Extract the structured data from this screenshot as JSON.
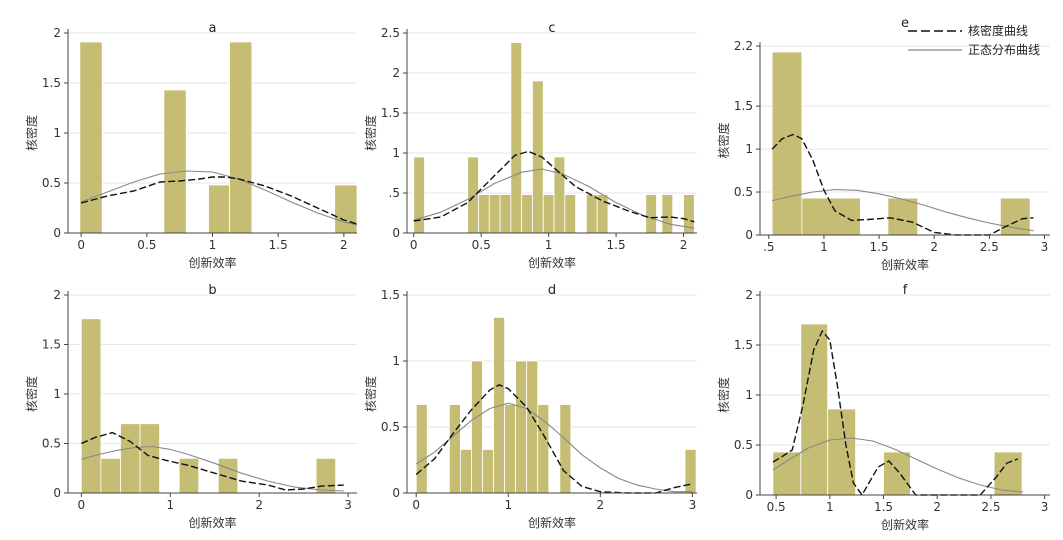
{
  "legend": {
    "kde_label": "核密度曲线",
    "normal_label": "正态分布曲线"
  },
  "colors": {
    "bar_fill": "#c5bd74",
    "bar_edge": "#ffffff",
    "kde_line": "#111111",
    "normal_line": "#888888",
    "axis": "#444444",
    "grid": "#e6e6e6"
  },
  "chart_data": [
    {
      "type": "histogram",
      "panel": "a",
      "title": "a",
      "xlabel": "创新效率",
      "ylabel": "核密度",
      "xlim": [
        -0.1,
        2.1
      ],
      "ylim": [
        0,
        2
      ],
      "xticks": [
        0,
        0.5,
        1,
        1.5,
        2
      ],
      "xtick_labels": [
        "0",
        "0.5",
        "1",
        "1.5",
        "2"
      ],
      "yticks": [
        0,
        0.5,
        1,
        1.5,
        2
      ],
      "ytick_labels": [
        "0",
        "0.5",
        "1",
        "1.5",
        "2"
      ],
      "bars": [
        {
          "x0": -0.01,
          "x1": 0.16,
          "h": 1.91
        },
        {
          "x0": 0.63,
          "x1": 0.8,
          "h": 1.43
        },
        {
          "x0": 0.97,
          "x1": 1.13,
          "h": 0.48
        },
        {
          "x0": 1.13,
          "x1": 1.3,
          "h": 1.91
        },
        {
          "x0": 1.93,
          "x1": 2.1,
          "h": 0.48
        }
      ],
      "kde": [
        [
          0,
          0.3
        ],
        [
          0.2,
          0.37
        ],
        [
          0.4,
          0.42
        ],
        [
          0.6,
          0.51
        ],
        [
          0.75,
          0.52
        ],
        [
          0.9,
          0.54
        ],
        [
          1.0,
          0.56
        ],
        [
          1.1,
          0.56
        ],
        [
          1.2,
          0.54
        ],
        [
          1.4,
          0.47
        ],
        [
          1.6,
          0.37
        ],
        [
          1.8,
          0.25
        ],
        [
          2.0,
          0.13
        ],
        [
          2.1,
          0.09
        ]
      ],
      "normal": [
        [
          0,
          0.31
        ],
        [
          0.2,
          0.41
        ],
        [
          0.4,
          0.51
        ],
        [
          0.6,
          0.59
        ],
        [
          0.8,
          0.62
        ],
        [
          1.0,
          0.61
        ],
        [
          1.2,
          0.54
        ],
        [
          1.4,
          0.43
        ],
        [
          1.6,
          0.31
        ],
        [
          1.8,
          0.2
        ],
        [
          2.0,
          0.11
        ],
        [
          2.1,
          0.08
        ]
      ]
    },
    {
      "type": "histogram",
      "panel": "c",
      "title": "c",
      "xlabel": "创新效率",
      "ylabel": "核密度",
      "xlim": [
        -0.05,
        2.1
      ],
      "ylim": [
        0,
        2.5
      ],
      "xticks": [
        0,
        0.5,
        1,
        1.5,
        2
      ],
      "xtick_labels": [
        "0",
        "0.5",
        "1",
        "1.5",
        "2"
      ],
      "yticks": [
        0,
        0.5,
        1,
        1.5,
        2,
        2.5
      ],
      "ytick_labels": [
        "0",
        ".5",
        "1",
        "1.5",
        "2",
        "2.5"
      ],
      "bars": [
        {
          "x0": 0.0,
          "x1": 0.08,
          "h": 0.95
        },
        {
          "x0": 0.4,
          "x1": 0.48,
          "h": 0.95
        },
        {
          "x0": 0.48,
          "x1": 0.56,
          "h": 0.48
        },
        {
          "x0": 0.56,
          "x1": 0.64,
          "h": 0.48
        },
        {
          "x0": 0.64,
          "x1": 0.72,
          "h": 0.48
        },
        {
          "x0": 0.72,
          "x1": 0.8,
          "h": 2.38
        },
        {
          "x0": 0.8,
          "x1": 0.88,
          "h": 0.48
        },
        {
          "x0": 0.88,
          "x1": 0.96,
          "h": 1.9
        },
        {
          "x0": 0.96,
          "x1": 1.04,
          "h": 0.48
        },
        {
          "x0": 1.04,
          "x1": 1.12,
          "h": 0.95
        },
        {
          "x0": 1.12,
          "x1": 1.2,
          "h": 0.48
        },
        {
          "x0": 1.28,
          "x1": 1.36,
          "h": 0.48
        },
        {
          "x0": 1.36,
          "x1": 1.44,
          "h": 0.48
        },
        {
          "x0": 1.72,
          "x1": 1.8,
          "h": 0.48
        },
        {
          "x0": 1.84,
          "x1": 1.92,
          "h": 0.48
        },
        {
          "x0": 2.0,
          "x1": 2.08,
          "h": 0.48
        }
      ],
      "kde": [
        [
          0,
          0.15
        ],
        [
          0.2,
          0.2
        ],
        [
          0.4,
          0.38
        ],
        [
          0.6,
          0.72
        ],
        [
          0.75,
          0.97
        ],
        [
          0.85,
          1.02
        ],
        [
          0.95,
          0.95
        ],
        [
          1.05,
          0.8
        ],
        [
          1.2,
          0.58
        ],
        [
          1.4,
          0.4
        ],
        [
          1.6,
          0.27
        ],
        [
          1.75,
          0.19
        ],
        [
          1.9,
          0.2
        ],
        [
          2.0,
          0.18
        ],
        [
          2.08,
          0.14
        ]
      ],
      "normal": [
        [
          0,
          0.16
        ],
        [
          0.2,
          0.26
        ],
        [
          0.4,
          0.42
        ],
        [
          0.6,
          0.62
        ],
        [
          0.8,
          0.76
        ],
        [
          0.95,
          0.8
        ],
        [
          1.1,
          0.74
        ],
        [
          1.3,
          0.58
        ],
        [
          1.5,
          0.38
        ],
        [
          1.7,
          0.22
        ],
        [
          1.9,
          0.11
        ],
        [
          2.08,
          0.06
        ]
      ]
    },
    {
      "type": "histogram",
      "panel": "e",
      "title": "e",
      "xlabel": "创新效率",
      "ylabel": "核密度",
      "xlim": [
        0.42,
        3.05
      ],
      "ylim": [
        0,
        2.2
      ],
      "xticks": [
        0.5,
        1,
        1.5,
        2,
        2.5,
        3
      ],
      "xtick_labels": [
        ".5",
        "1",
        "1.5",
        "2",
        "2.5",
        "3"
      ],
      "yticks": [
        0,
        0.5,
        1,
        1.5,
        2.2
      ],
      "ytick_labels": [
        "0",
        "0.5",
        "1",
        "1.5",
        "2.2"
      ],
      "bars": [
        {
          "x0": 0.53,
          "x1": 0.8,
          "h": 2.13
        },
        {
          "x0": 0.8,
          "x1": 1.33,
          "h": 0.43
        },
        {
          "x0": 1.58,
          "x1": 1.85,
          "h": 0.43
        },
        {
          "x0": 2.6,
          "x1": 2.87,
          "h": 0.43
        }
      ],
      "kde": [
        [
          0.53,
          1.0
        ],
        [
          0.62,
          1.12
        ],
        [
          0.72,
          1.17
        ],
        [
          0.8,
          1.12
        ],
        [
          0.9,
          0.87
        ],
        [
          1.0,
          0.52
        ],
        [
          1.1,
          0.28
        ],
        [
          1.25,
          0.17
        ],
        [
          1.4,
          0.18
        ],
        [
          1.6,
          0.2
        ],
        [
          1.8,
          0.15
        ],
        [
          2.0,
          0.03
        ],
        [
          2.2,
          0.0
        ],
        [
          2.5,
          0.0
        ],
        [
          2.65,
          0.1
        ],
        [
          2.8,
          0.19
        ],
        [
          2.9,
          0.2
        ]
      ],
      "normal": [
        [
          0.53,
          0.4
        ],
        [
          0.7,
          0.45
        ],
        [
          0.9,
          0.5
        ],
        [
          1.1,
          0.53
        ],
        [
          1.3,
          0.52
        ],
        [
          1.5,
          0.48
        ],
        [
          1.7,
          0.42
        ],
        [
          1.9,
          0.35
        ],
        [
          2.1,
          0.27
        ],
        [
          2.3,
          0.2
        ],
        [
          2.5,
          0.14
        ],
        [
          2.7,
          0.09
        ],
        [
          2.9,
          0.05
        ]
      ]
    },
    {
      "type": "histogram",
      "panel": "b",
      "title": "b",
      "xlabel": "创新效率",
      "ylabel": "核密度",
      "xlim": [
        -0.15,
        3.1
      ],
      "ylim": [
        0,
        2
      ],
      "xticks": [
        0,
        1,
        2,
        3
      ],
      "xtick_labels": [
        "0",
        "1",
        "2",
        "3"
      ],
      "yticks": [
        0,
        0.5,
        1,
        1.5,
        2
      ],
      "ytick_labels": [
        "0",
        "0.5",
        "1",
        "1.5",
        "2"
      ],
      "bars": [
        {
          "x0": 0.0,
          "x1": 0.22,
          "h": 1.76
        },
        {
          "x0": 0.22,
          "x1": 0.44,
          "h": 0.35
        },
        {
          "x0": 0.44,
          "x1": 0.66,
          "h": 0.7
        },
        {
          "x0": 0.66,
          "x1": 0.88,
          "h": 0.7
        },
        {
          "x0": 1.1,
          "x1": 1.32,
          "h": 0.35
        },
        {
          "x0": 1.54,
          "x1": 1.76,
          "h": 0.35
        },
        {
          "x0": 2.64,
          "x1": 2.86,
          "h": 0.35
        }
      ],
      "kde": [
        [
          0,
          0.5
        ],
        [
          0.15,
          0.56
        ],
        [
          0.35,
          0.61
        ],
        [
          0.55,
          0.52
        ],
        [
          0.75,
          0.38
        ],
        [
          0.95,
          0.33
        ],
        [
          1.2,
          0.28
        ],
        [
          1.5,
          0.2
        ],
        [
          1.8,
          0.12
        ],
        [
          2.1,
          0.08
        ],
        [
          2.3,
          0.03
        ],
        [
          2.5,
          0.04
        ],
        [
          2.7,
          0.07
        ],
        [
          2.95,
          0.08
        ]
      ],
      "normal": [
        [
          0,
          0.34
        ],
        [
          0.2,
          0.39
        ],
        [
          0.4,
          0.43
        ],
        [
          0.6,
          0.46
        ],
        [
          0.8,
          0.47
        ],
        [
          1.0,
          0.44
        ],
        [
          1.2,
          0.39
        ],
        [
          1.5,
          0.3
        ],
        [
          1.8,
          0.2
        ],
        [
          2.1,
          0.12
        ],
        [
          2.4,
          0.06
        ],
        [
          2.7,
          0.03
        ],
        [
          2.95,
          0.02
        ]
      ]
    },
    {
      "type": "histogram",
      "panel": "d",
      "title": "d",
      "xlabel": "创新效率",
      "ylabel": "核密度",
      "xlim": [
        -0.1,
        3.05
      ],
      "ylim": [
        0,
        1.5
      ],
      "xticks": [
        0,
        1,
        2,
        3
      ],
      "xtick_labels": [
        "0",
        "1",
        "2",
        "3"
      ],
      "yticks": [
        0,
        0.5,
        1,
        1.5
      ],
      "ytick_labels": [
        "0",
        "0.5",
        "1",
        "1.5"
      ],
      "bars": [
        {
          "x0": 0.0,
          "x1": 0.12,
          "h": 0.67
        },
        {
          "x0": 0.36,
          "x1": 0.48,
          "h": 0.67
        },
        {
          "x0": 0.48,
          "x1": 0.6,
          "h": 0.33
        },
        {
          "x0": 0.6,
          "x1": 0.72,
          "h": 1.0
        },
        {
          "x0": 0.72,
          "x1": 0.84,
          "h": 0.33
        },
        {
          "x0": 0.84,
          "x1": 0.96,
          "h": 1.33
        },
        {
          "x0": 0.96,
          "x1": 1.08,
          "h": 0.67
        },
        {
          "x0": 1.08,
          "x1": 1.2,
          "h": 1.0
        },
        {
          "x0": 1.2,
          "x1": 1.32,
          "h": 1.0
        },
        {
          "x0": 1.32,
          "x1": 1.44,
          "h": 0.67
        },
        {
          "x0": 1.56,
          "x1": 1.68,
          "h": 0.67
        },
        {
          "x0": 2.92,
          "x1": 3.04,
          "h": 0.33
        }
      ],
      "kde": [
        [
          0,
          0.14
        ],
        [
          0.2,
          0.26
        ],
        [
          0.4,
          0.45
        ],
        [
          0.6,
          0.63
        ],
        [
          0.8,
          0.78
        ],
        [
          0.9,
          0.82
        ],
        [
          1.0,
          0.79
        ],
        [
          1.2,
          0.65
        ],
        [
          1.4,
          0.42
        ],
        [
          1.6,
          0.17
        ],
        [
          1.8,
          0.05
        ],
        [
          2.0,
          0.01
        ],
        [
          2.3,
          0.0
        ],
        [
          2.6,
          0.0
        ],
        [
          2.8,
          0.04
        ],
        [
          3.0,
          0.07
        ]
      ],
      "normal": [
        [
          0,
          0.22
        ],
        [
          0.2,
          0.31
        ],
        [
          0.4,
          0.43
        ],
        [
          0.6,
          0.55
        ],
        [
          0.8,
          0.64
        ],
        [
          1.0,
          0.68
        ],
        [
          1.2,
          0.64
        ],
        [
          1.4,
          0.54
        ],
        [
          1.6,
          0.42
        ],
        [
          1.8,
          0.29
        ],
        [
          2.0,
          0.19
        ],
        [
          2.2,
          0.11
        ],
        [
          2.4,
          0.06
        ],
        [
          2.6,
          0.03
        ],
        [
          2.8,
          0.01
        ],
        [
          3.0,
          0.01
        ]
      ]
    },
    {
      "type": "histogram",
      "panel": "f",
      "title": "f",
      "xlabel": "创新效率",
      "ylabel": "核密度",
      "xlim": [
        0.35,
        3.05
      ],
      "ylim": [
        0,
        2
      ],
      "xticks": [
        0.5,
        1,
        1.5,
        2,
        2.5,
        3
      ],
      "xtick_labels": [
        "0.5",
        "1",
        "1.5",
        "2",
        "2.5",
        "3"
      ],
      "yticks": [
        0,
        0.5,
        1,
        1.5,
        2
      ],
      "ytick_labels": [
        "0",
        "0.5",
        "1",
        "1.5",
        "2"
      ],
      "bars": [
        {
          "x0": 0.47,
          "x1": 0.73,
          "h": 0.43
        },
        {
          "x0": 0.73,
          "x1": 0.98,
          "h": 1.71
        },
        {
          "x0": 0.98,
          "x1": 1.24,
          "h": 0.86
        },
        {
          "x0": 1.5,
          "x1": 1.75,
          "h": 0.43
        },
        {
          "x0": 2.53,
          "x1": 2.79,
          "h": 0.43
        }
      ],
      "kde": [
        [
          0.47,
          0.33
        ],
        [
          0.55,
          0.38
        ],
        [
          0.65,
          0.45
        ],
        [
          0.75,
          0.9
        ],
        [
          0.85,
          1.45
        ],
        [
          0.93,
          1.64
        ],
        [
          1.0,
          1.55
        ],
        [
          1.07,
          1.1
        ],
        [
          1.15,
          0.5
        ],
        [
          1.22,
          0.12
        ],
        [
          1.3,
          0.0
        ],
        [
          1.45,
          0.28
        ],
        [
          1.55,
          0.34
        ],
        [
          1.65,
          0.22
        ],
        [
          1.8,
          0.0
        ],
        [
          2.4,
          0.0
        ],
        [
          2.55,
          0.18
        ],
        [
          2.65,
          0.32
        ],
        [
          2.75,
          0.36
        ]
      ],
      "normal": [
        [
          0.47,
          0.25
        ],
        [
          0.6,
          0.34
        ],
        [
          0.8,
          0.47
        ],
        [
          1.0,
          0.55
        ],
        [
          1.2,
          0.57
        ],
        [
          1.4,
          0.54
        ],
        [
          1.6,
          0.46
        ],
        [
          1.8,
          0.36
        ],
        [
          2.0,
          0.26
        ],
        [
          2.2,
          0.17
        ],
        [
          2.4,
          0.1
        ],
        [
          2.6,
          0.05
        ],
        [
          2.8,
          0.03
        ]
      ]
    }
  ]
}
